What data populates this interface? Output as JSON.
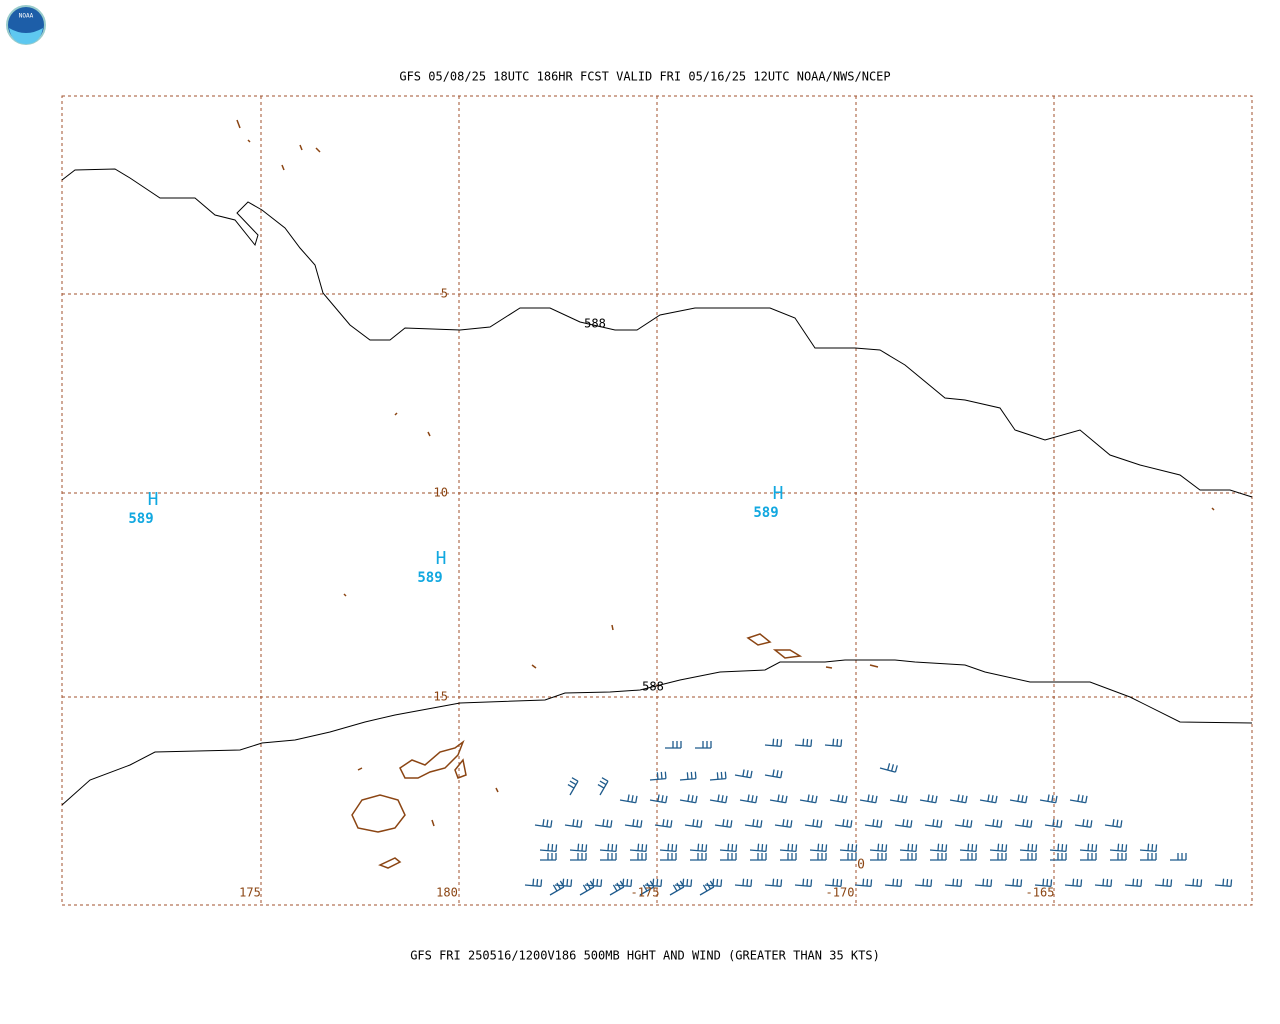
{
  "logo": "NOAA",
  "header": {
    "title": "GFS 05/08/25 18UTC 186HR FCST VALID FRI 05/16/25 12UTC NOAA/NWS/NCEP"
  },
  "map": {
    "lat_labels": [
      "-5",
      "-10",
      "-15"
    ],
    "lon_labels": [
      "175",
      "180",
      "-175",
      "-170",
      "-165"
    ],
    "contour_labels": [
      "588",
      "588"
    ],
    "highs": [
      {
        "symbol": "H",
        "value": "589"
      },
      {
        "symbol": "H",
        "value": "589"
      },
      {
        "symbol": "H",
        "value": "589"
      }
    ],
    "other_labels": [
      "0"
    ]
  },
  "footer": {
    "caption": "GFS FRI 250516/1200V186 500MB HGHT AND WIND (GREATER THAN 35 KTS)"
  }
}
